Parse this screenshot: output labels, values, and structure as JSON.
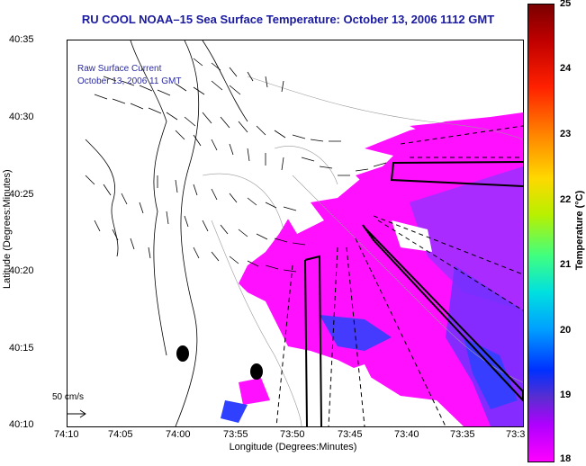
{
  "title": "RU COOL  NOAA–15  Sea Surface Temperature:  October 13, 2006 1112 GMT",
  "legend": {
    "line1": "Raw Surface Current",
    "line2": "October 13, 2006 11 GMT"
  },
  "scale_label": "50 cm/s",
  "axes": {
    "ylabel": "Latitude (Degrees:Minutes)",
    "xlabel": "Longitude (Degrees:Minutes)",
    "yticks": [
      "40:35",
      "40:30",
      "40:25",
      "40:20",
      "40:15",
      "40:10"
    ],
    "xticks": [
      "74:10",
      "74:05",
      "74:00",
      "73:55",
      "73:50",
      "73:45",
      "73:40",
      "73:35",
      "73:3"
    ]
  },
  "colorbar": {
    "label": "Temperature (°C)",
    "ticks": [
      "25",
      "24",
      "23",
      "22",
      "21",
      "20",
      "19",
      "18"
    ]
  },
  "colors": {
    "title": "#1a1aa0",
    "sst_low": "#ff00ff",
    "sst_mid": "#b000ff",
    "sst_high": "#0030ff"
  }
}
